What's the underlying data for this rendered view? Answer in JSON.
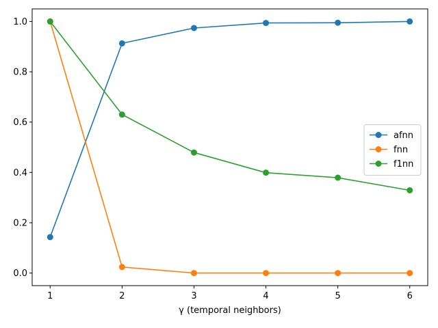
{
  "chart_data": {
    "type": "line",
    "title": "",
    "xlabel": "γ (temporal neighbors)",
    "ylabel": "",
    "x": [
      1,
      2,
      3,
      4,
      5,
      6
    ],
    "xticks": [
      1,
      2,
      3,
      4,
      5,
      6
    ],
    "yticks": [
      0.0,
      0.2,
      0.4,
      0.6,
      0.8,
      1.0
    ],
    "xlim": [
      0.75,
      6.25
    ],
    "ylim": [
      -0.05,
      1.05
    ],
    "grid": false,
    "legend_position": "center-right",
    "series": [
      {
        "name": "afnn",
        "color": "#1f77b4",
        "values": [
          0.143,
          0.913,
          0.974,
          0.994,
          0.995,
          1.0
        ]
      },
      {
        "name": "fnn",
        "color": "#ff7f0e",
        "values": [
          1.0,
          0.024,
          0.0,
          0.0,
          0.0,
          0.0
        ]
      },
      {
        "name": "f1nn",
        "color": "#2ca02c",
        "values": [
          1.0,
          0.63,
          0.479,
          0.399,
          0.379,
          0.329
        ]
      }
    ]
  }
}
